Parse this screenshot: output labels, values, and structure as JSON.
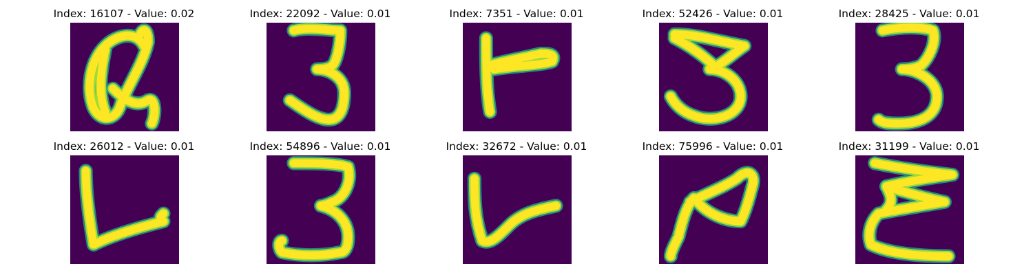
{
  "colors": {
    "background": "#440154",
    "stroke_core": "#fde725",
    "stroke_mid": "#a0da39",
    "stroke_edge": "#1f9e89"
  },
  "panels": [
    {
      "title": "Index: 16107 - Value: 0.02",
      "glyph": "loop-scribble"
    },
    {
      "title": "Index: 22092 - Value: 0.01",
      "glyph": "three-thin"
    },
    {
      "title": "Index: 7351 - Value: 0.01",
      "glyph": "t-shape"
    },
    {
      "title": "Index: 52426 - Value: 0.01",
      "glyph": "three-wide"
    },
    {
      "title": "Index: 28425 - Value: 0.01",
      "glyph": "three-upright"
    },
    {
      "title": "Index: 26012 - Value: 0.01",
      "glyph": "v-corner"
    },
    {
      "title": "Index: 54896 - Value: 0.01",
      "glyph": "three-tall"
    },
    {
      "title": "Index: 32672 - Value: 0.01",
      "glyph": "check-curve"
    },
    {
      "title": "Index: 75996 - Value: 0.01",
      "glyph": "two-tilted"
    },
    {
      "title": "Index: 31199 - Value: 0.01",
      "glyph": "three-rotated"
    }
  ]
}
